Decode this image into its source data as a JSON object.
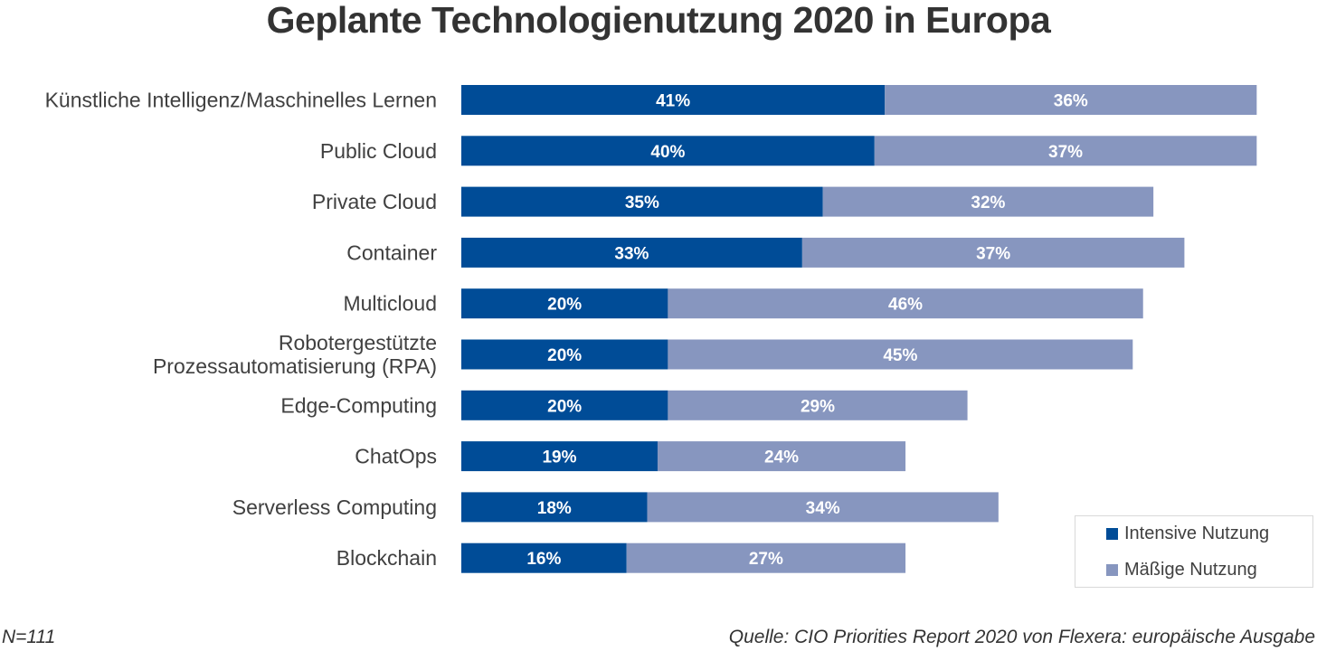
{
  "chart_data": {
    "type": "bar",
    "orientation": "horizontal",
    "stacked": true,
    "title": "Geplante Technologienutzung 2020 in Europa",
    "xlabel": "",
    "ylabel": "",
    "xlim": [
      0,
      100
    ],
    "grid": false,
    "legend_position": "bottom-right",
    "categories": [
      [
        "Künstliche Intelligenz/Maschinelles Lernen"
      ],
      [
        "Public Cloud"
      ],
      [
        "Private Cloud"
      ],
      [
        "Container"
      ],
      [
        "Multicloud"
      ],
      [
        "Robotergestützte",
        "Prozessautomatisierung (RPA)"
      ],
      [
        "Edge-Computing"
      ],
      [
        "ChatOps"
      ],
      [
        "Serverless Computing"
      ],
      [
        "Blockchain"
      ]
    ],
    "series": [
      {
        "name": "Intensive Nutzung",
        "color": "#004c97",
        "values": [
          41,
          40,
          35,
          33,
          20,
          20,
          20,
          19,
          18,
          16
        ]
      },
      {
        "name": "Mäßige Nutzung",
        "color": "#8796bf",
        "values": [
          36,
          37,
          32,
          37,
          46,
          45,
          29,
          24,
          34,
          27
        ]
      }
    ],
    "value_suffix": "%"
  },
  "footer": {
    "sample": "N=111",
    "source": "Quelle: CIO Priorities Report 2020 von Flexera: europäische Ausgabe"
  }
}
